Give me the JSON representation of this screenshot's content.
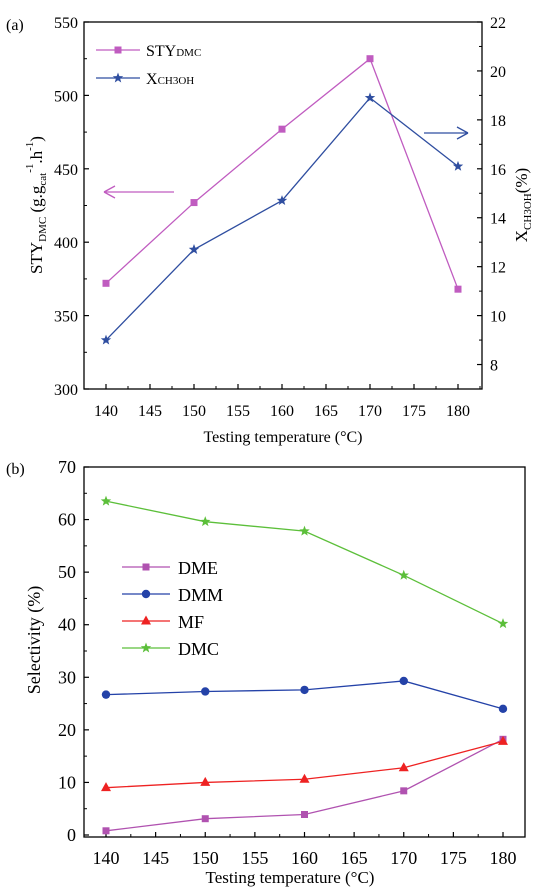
{
  "colors": {
    "axis": "#000000",
    "sty": "#c05cc0",
    "xch3oh": "#2f4ea0",
    "dme": "#b052b0",
    "dmm": "#2442a8",
    "mf": "#ee2222",
    "dmc": "#5cbf3a",
    "arrow_left": "#c05cc0",
    "arrow_right": "#2f4ea0"
  },
  "chart_data": [
    {
      "panel_label": "(a)",
      "type": "line",
      "x": [
        140,
        150,
        160,
        170,
        180
      ],
      "xlabel": "Testing temperature (°C)",
      "xlim": [
        135,
        185
      ],
      "xticks": [
        "140",
        "145",
        "150",
        "155",
        "160",
        "165",
        "170",
        "175",
        "180"
      ],
      "ylabel_left": {
        "base": "STY",
        "sub1": "DMC",
        "rest": " (g.g",
        "sub2": "cat",
        "sup1": "-1",
        "mid": ".h",
        "sup2": "-1",
        "end": ")"
      },
      "ylim_left": [
        300,
        550
      ],
      "yticks_left": [
        "300",
        "350",
        "400",
        "450",
        "500",
        "550"
      ],
      "ylabel_right": {
        "base": "X",
        "sub": "CH3OH",
        "end": "(%)"
      },
      "ylim_right": [
        7,
        22
      ],
      "yticks_right": [
        "8",
        "10",
        "12",
        "14",
        "16",
        "18",
        "20",
        "22"
      ],
      "legend_position": "top-left",
      "annotations": [
        "arrow pointing left to STY axis",
        "arrow pointing right to X axis"
      ],
      "series": [
        {
          "name": "STY",
          "name_sub": "DMC",
          "axis": "left",
          "marker": "square",
          "values": [
            372,
            427,
            477,
            525,
            368
          ]
        },
        {
          "name": "X",
          "name_sub": "CH3OH",
          "axis": "right",
          "marker": "star",
          "values": [
            9.0,
            12.7,
            14.7,
            18.9,
            16.1
          ]
        }
      ]
    },
    {
      "panel_label": "(b)",
      "type": "line",
      "x": [
        140,
        150,
        160,
        170,
        180
      ],
      "xlabel": "Testing temperature (°C)",
      "xlim": [
        135,
        185
      ],
      "xticks": [
        "140",
        "145",
        "150",
        "155",
        "160",
        "165",
        "170",
        "175",
        "180"
      ],
      "ylabel": "Selectivity (%)",
      "ylim": [
        0,
        70
      ],
      "yticks": [
        "0",
        "10",
        "20",
        "30",
        "40",
        "50",
        "60",
        "70"
      ],
      "legend_position": "middle-left",
      "series": [
        {
          "name": "DME",
          "marker": "square",
          "values": [
            0.8,
            3.1,
            3.9,
            8.4,
            18.2
          ]
        },
        {
          "name": "DMM",
          "marker": "circle",
          "values": [
            26.7,
            27.3,
            27.6,
            29.3,
            24.0
          ]
        },
        {
          "name": "MF",
          "marker": "triangle",
          "values": [
            9.0,
            10.0,
            10.6,
            12.8,
            17.8
          ]
        },
        {
          "name": "DMC",
          "marker": "star",
          "values": [
            63.5,
            59.6,
            57.8,
            49.4,
            40.2
          ]
        }
      ]
    }
  ]
}
